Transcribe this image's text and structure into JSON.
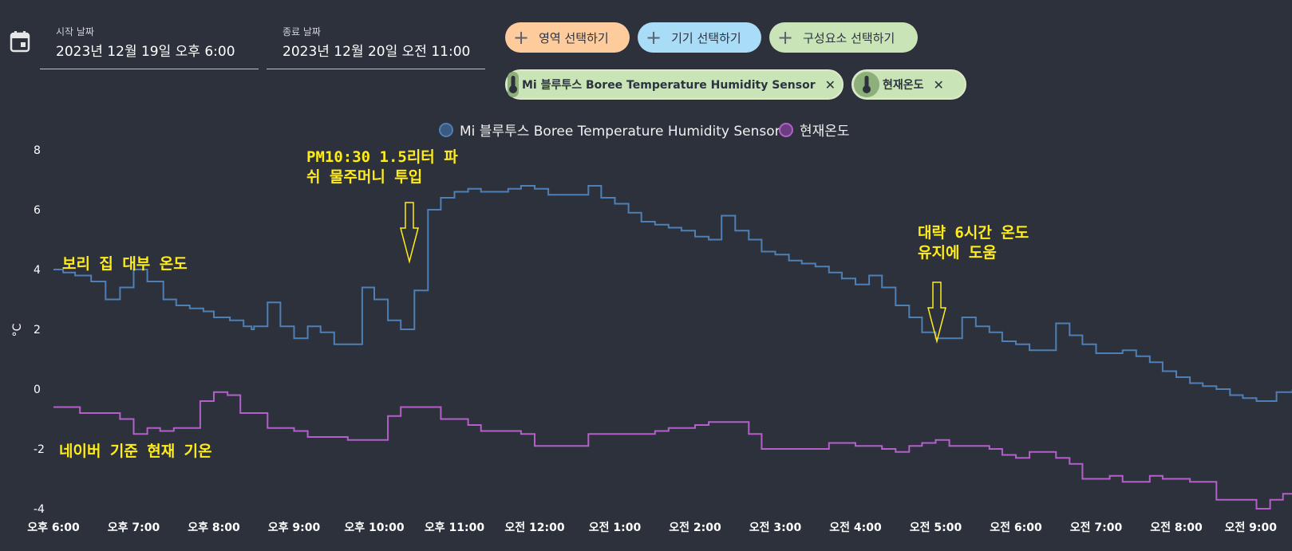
{
  "filters": {
    "start_label": "시작 날짜",
    "start_value": "2023년 12월 19일 오후 6:00",
    "end_label": "종료 날짜",
    "end_value": "2023년 12월 20일 오전 11:00"
  },
  "buttons": {
    "area": "영역 선택하기",
    "device": "기기 선택하기",
    "component": "구성요소 선택하기",
    "plus": "+"
  },
  "chips": {
    "sensor": "Mi 블루투스 Boree Temperature Humidity Sensor",
    "current": "현재온도",
    "close": "✕"
  },
  "colors": {
    "sensor": "#4e7fb5",
    "sensor_dot": "#3a5a80",
    "current": "#b45fca",
    "current_dot": "#6a3f82",
    "annotation": "#ffec1a",
    "background": "#2c313c"
  },
  "chart_data": {
    "type": "line",
    "step": true,
    "ylabel": "°C",
    "ylim": [
      -4,
      8
    ],
    "yticks": [
      8,
      6,
      4,
      2,
      0,
      -2,
      -4
    ],
    "xlim": [
      0,
      15
    ],
    "xticks": [
      {
        "v": 0,
        "label": "오후 6:00"
      },
      {
        "v": 1,
        "label": "오후 7:00"
      },
      {
        "v": 2,
        "label": "오후 8:00"
      },
      {
        "v": 3,
        "label": "오후 9:00"
      },
      {
        "v": 4,
        "label": "오후 10:00"
      },
      {
        "v": 5,
        "label": "오후 11:00"
      },
      {
        "v": 6,
        "label": "오전 12:00"
      },
      {
        "v": 7,
        "label": "오전 1:00"
      },
      {
        "v": 8,
        "label": "오전 2:00"
      },
      {
        "v": 9,
        "label": "오전 3:00"
      },
      {
        "v": 10,
        "label": "오전 4:00"
      },
      {
        "v": 11,
        "label": "오전 5:00"
      },
      {
        "v": 12,
        "label": "오전 6:00"
      },
      {
        "v": 13,
        "label": "오전 7:00"
      },
      {
        "v": 14,
        "label": "오전 8:00"
      },
      {
        "v": 15,
        "label": "오전 9:00"
      }
    ],
    "series": [
      {
        "name": "Mi 블루투스 Boree Temperature Humidity Sensor",
        "points": [
          [
            0.0,
            4.0
          ],
          [
            0.12,
            3.9
          ],
          [
            0.27,
            3.8
          ],
          [
            0.47,
            3.6
          ],
          [
            0.65,
            3.0
          ],
          [
            0.83,
            3.4
          ],
          [
            1.0,
            4.0
          ],
          [
            1.17,
            3.6
          ],
          [
            1.37,
            3.0
          ],
          [
            1.53,
            2.8
          ],
          [
            1.7,
            2.7
          ],
          [
            1.87,
            2.6
          ],
          [
            2.0,
            2.4
          ],
          [
            2.2,
            2.3
          ],
          [
            2.37,
            2.1
          ],
          [
            2.47,
            2.0
          ],
          [
            2.5,
            2.1
          ],
          [
            2.67,
            2.9
          ],
          [
            2.83,
            2.1
          ],
          [
            3.0,
            1.7
          ],
          [
            3.17,
            2.1
          ],
          [
            3.33,
            1.9
          ],
          [
            3.5,
            1.5
          ],
          [
            3.83,
            1.5
          ],
          [
            3.85,
            3.4
          ],
          [
            4.0,
            3.0
          ],
          [
            4.17,
            2.3
          ],
          [
            4.33,
            2.0
          ],
          [
            4.5,
            3.3
          ],
          [
            4.67,
            6.0
          ],
          [
            4.83,
            6.4
          ],
          [
            5.0,
            6.6
          ],
          [
            5.17,
            6.7
          ],
          [
            5.33,
            6.6
          ],
          [
            5.67,
            6.7
          ],
          [
            5.83,
            6.8
          ],
          [
            6.0,
            6.7
          ],
          [
            6.17,
            6.5
          ],
          [
            6.5,
            6.5
          ],
          [
            6.67,
            6.8
          ],
          [
            6.83,
            6.4
          ],
          [
            7.0,
            6.2
          ],
          [
            7.17,
            5.9
          ],
          [
            7.33,
            5.6
          ],
          [
            7.5,
            5.5
          ],
          [
            7.67,
            5.4
          ],
          [
            7.83,
            5.3
          ],
          [
            8.0,
            5.1
          ],
          [
            8.17,
            5.0
          ],
          [
            8.33,
            5.8
          ],
          [
            8.5,
            5.3
          ],
          [
            8.67,
            5.0
          ],
          [
            8.83,
            4.6
          ],
          [
            9.0,
            4.5
          ],
          [
            9.17,
            4.3
          ],
          [
            9.33,
            4.2
          ],
          [
            9.5,
            4.1
          ],
          [
            9.67,
            3.9
          ],
          [
            9.83,
            3.7
          ],
          [
            10.0,
            3.5
          ],
          [
            10.17,
            3.8
          ],
          [
            10.33,
            3.4
          ],
          [
            10.5,
            2.8
          ],
          [
            10.67,
            2.4
          ],
          [
            10.83,
            1.9
          ],
          [
            11.0,
            1.7
          ],
          [
            11.33,
            2.4
          ],
          [
            11.5,
            2.1
          ],
          [
            11.67,
            1.9
          ],
          [
            11.83,
            1.6
          ],
          [
            12.0,
            1.5
          ],
          [
            12.17,
            1.3
          ],
          [
            12.33,
            1.3
          ],
          [
            12.5,
            2.2
          ],
          [
            12.67,
            1.8
          ],
          [
            12.83,
            1.5
          ],
          [
            13.0,
            1.2
          ],
          [
            13.17,
            1.2
          ],
          [
            13.33,
            1.3
          ],
          [
            13.5,
            1.1
          ],
          [
            13.67,
            0.9
          ],
          [
            13.83,
            0.6
          ],
          [
            14.0,
            0.4
          ],
          [
            14.17,
            0.2
          ],
          [
            14.33,
            0.1
          ],
          [
            14.5,
            0.0
          ],
          [
            14.67,
            -0.2
          ],
          [
            14.83,
            -0.3
          ],
          [
            15.0,
            -0.4
          ],
          [
            15.25,
            -0.1
          ],
          [
            15.45,
            0.0
          ]
        ]
      },
      {
        "name": "현재온도",
        "points": [
          [
            0.0,
            -0.6
          ],
          [
            0.17,
            -0.6
          ],
          [
            0.33,
            -0.8
          ],
          [
            0.5,
            -0.8
          ],
          [
            0.67,
            -0.8
          ],
          [
            0.83,
            -1.0
          ],
          [
            1.0,
            -1.5
          ],
          [
            1.17,
            -1.3
          ],
          [
            1.33,
            -1.4
          ],
          [
            1.5,
            -1.3
          ],
          [
            1.83,
            -0.4
          ],
          [
            2.0,
            -0.1
          ],
          [
            2.17,
            -0.2
          ],
          [
            2.33,
            -0.8
          ],
          [
            2.67,
            -1.3
          ],
          [
            3.0,
            -1.4
          ],
          [
            3.17,
            -1.6
          ],
          [
            3.5,
            -1.6
          ],
          [
            3.67,
            -1.7
          ],
          [
            4.0,
            -1.7
          ],
          [
            4.17,
            -0.9
          ],
          [
            4.33,
            -0.6
          ],
          [
            4.67,
            -0.6
          ],
          [
            4.83,
            -1.0
          ],
          [
            5.17,
            -1.2
          ],
          [
            5.33,
            -1.4
          ],
          [
            5.83,
            -1.5
          ],
          [
            6.0,
            -1.9
          ],
          [
            6.33,
            -1.9
          ],
          [
            6.67,
            -1.5
          ],
          [
            7.0,
            -1.5
          ],
          [
            7.33,
            -1.5
          ],
          [
            7.5,
            -1.4
          ],
          [
            7.67,
            -1.3
          ],
          [
            7.83,
            -1.3
          ],
          [
            8.0,
            -1.2
          ],
          [
            8.17,
            -1.1
          ],
          [
            8.5,
            -1.1
          ],
          [
            8.67,
            -1.5
          ],
          [
            8.83,
            -2.0
          ],
          [
            9.0,
            -2.0
          ],
          [
            9.33,
            -2.0
          ],
          [
            9.67,
            -1.8
          ],
          [
            10.0,
            -1.9
          ],
          [
            10.33,
            -2.0
          ],
          [
            10.5,
            -2.1
          ],
          [
            10.67,
            -1.9
          ],
          [
            10.83,
            -1.8
          ],
          [
            11.0,
            -1.7
          ],
          [
            11.17,
            -1.9
          ],
          [
            11.33,
            -1.9
          ],
          [
            11.67,
            -2.0
          ],
          [
            11.83,
            -2.2
          ],
          [
            12.0,
            -2.3
          ],
          [
            12.17,
            -2.1
          ],
          [
            12.33,
            -2.1
          ],
          [
            12.5,
            -2.3
          ],
          [
            12.67,
            -2.5
          ],
          [
            12.83,
            -3.0
          ],
          [
            13.0,
            -3.0
          ],
          [
            13.17,
            -2.9
          ],
          [
            13.33,
            -3.1
          ],
          [
            13.5,
            -3.1
          ],
          [
            13.67,
            -2.9
          ],
          [
            13.83,
            -3.0
          ],
          [
            14.0,
            -3.0
          ],
          [
            14.17,
            -3.1
          ],
          [
            14.33,
            -3.1
          ],
          [
            14.5,
            -3.7
          ],
          [
            14.67,
            -3.7
          ],
          [
            14.83,
            -3.7
          ],
          [
            15.0,
            -4.0
          ],
          [
            15.17,
            -3.7
          ],
          [
            15.33,
            -3.5
          ],
          [
            15.45,
            -3.5
          ]
        ]
      }
    ],
    "annotations": [
      {
        "id": "pm1030",
        "text": "PM10:30 1.5리터 파\n쉬 물주머니 투입"
      },
      {
        "id": "six-hours",
        "text": "대략 6시간 온도\n유지에 도움"
      },
      {
        "id": "inside",
        "text": "보리 집 대부 온도"
      },
      {
        "id": "naver",
        "text": "네이버 기준 현재 기온"
      }
    ]
  }
}
